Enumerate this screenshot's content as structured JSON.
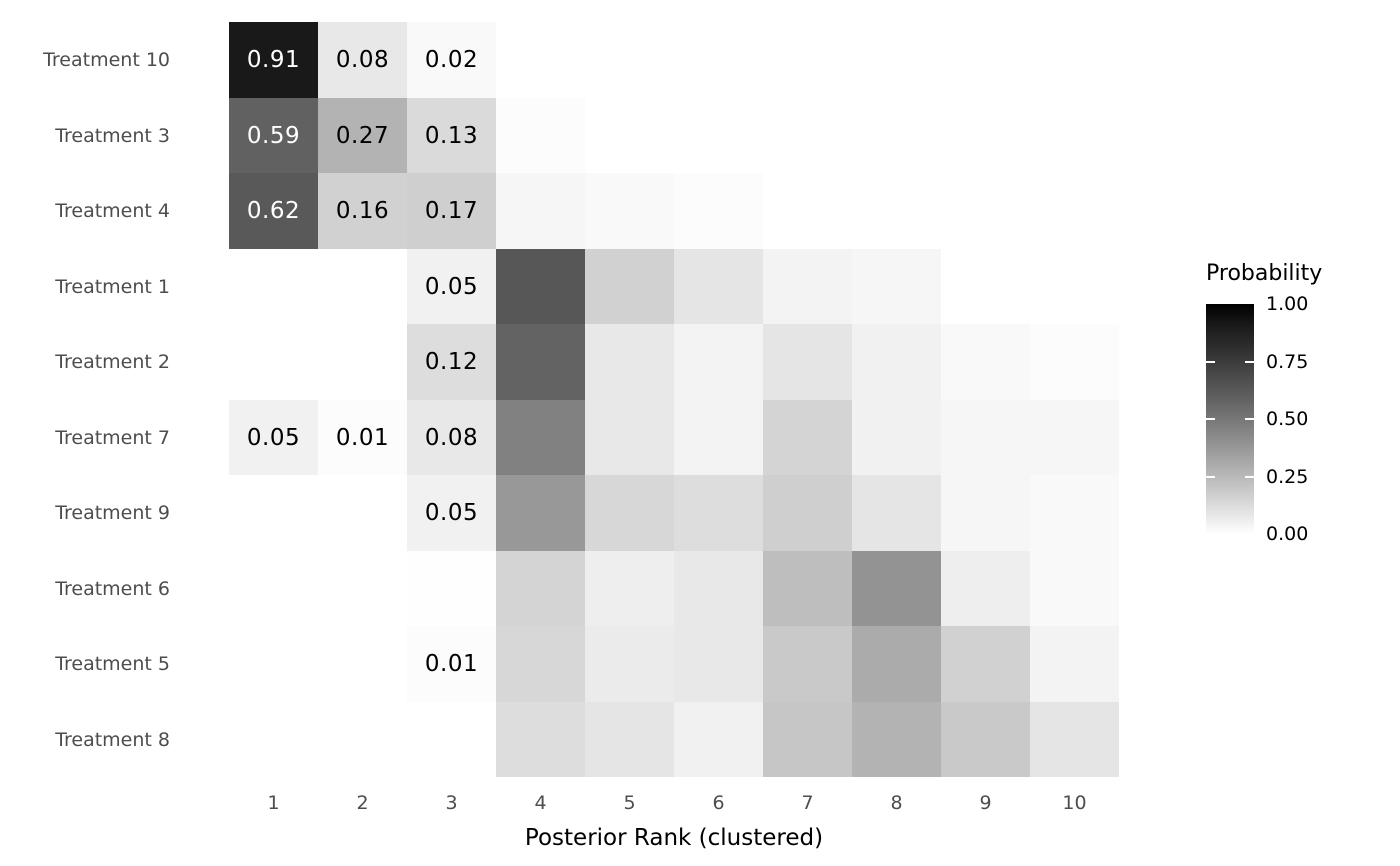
{
  "chart_data": {
    "type": "heatmap",
    "title": "",
    "xlabel": "Posterior Rank (clustered)",
    "ylabel": "",
    "x_ticks": [
      "1",
      "2",
      "3",
      "4",
      "5",
      "6",
      "7",
      "8",
      "9",
      "10"
    ],
    "y_ticks": [
      "Treatment 10",
      "Treatment 3",
      "Treatment 4",
      "Treatment 1",
      "Treatment 2",
      "Treatment 7",
      "Treatment 9",
      "Treatment 6",
      "Treatment 5",
      "Treatment 8"
    ],
    "legend": {
      "title": "Probability",
      "position": "right",
      "tick_labels": [
        "1.00",
        "0.75",
        "0.50",
        "0.25",
        "0.00"
      ],
      "tick_values": [
        1.0,
        0.75,
        0.5,
        0.25,
        0.0
      ],
      "low_color": "#FFFFFF",
      "high_color": "#000000"
    },
    "value_labels": {
      "shown_for_columns": [
        1,
        2,
        3
      ],
      "min_value": 0.01,
      "decimals": 2
    },
    "colors": {
      "background": "#FFFFFF",
      "axis_tick_label": "#4D4D4D",
      "axis_title": "#000000",
      "cell_label_on_light": "#000000",
      "cell_label_on_dark": "#FFFFFF"
    },
    "grid": false,
    "rows": [
      {
        "label": "Treatment 10",
        "values": [
          0.91,
          0.08,
          0.02,
          0,
          0,
          0,
          0,
          0,
          0,
          0
        ]
      },
      {
        "label": "Treatment 3",
        "values": [
          0.59,
          0.27,
          0.13,
          0.01,
          0,
          0,
          0,
          0,
          0,
          0
        ]
      },
      {
        "label": "Treatment 4",
        "values": [
          0.62,
          0.16,
          0.17,
          0.03,
          0.02,
          0.01,
          0,
          0,
          0,
          0
        ]
      },
      {
        "label": "Treatment 1",
        "values": [
          0,
          0,
          0.05,
          0.63,
          0.16,
          0.09,
          0.04,
          0.03,
          0,
          0
        ]
      },
      {
        "label": "Treatment 2",
        "values": [
          0,
          0,
          0.12,
          0.58,
          0.08,
          0.04,
          0.09,
          0.05,
          0.02,
          0.01
        ]
      },
      {
        "label": "Treatment 7",
        "values": [
          0.05,
          0.01,
          0.08,
          0.46,
          0.08,
          0.04,
          0.15,
          0.05,
          0.03,
          0.03
        ]
      },
      {
        "label": "Treatment 9",
        "values": [
          0,
          0,
          0.05,
          0.37,
          0.14,
          0.12,
          0.17,
          0.09,
          0.03,
          0.02
        ]
      },
      {
        "label": "Treatment 6",
        "values": [
          0,
          0,
          0.005,
          0.15,
          0.06,
          0.08,
          0.23,
          0.39,
          0.06,
          0.02
        ]
      },
      {
        "label": "Treatment 5",
        "values": [
          0,
          0,
          0.01,
          0.14,
          0.07,
          0.08,
          0.19,
          0.3,
          0.16,
          0.04
        ]
      },
      {
        "label": "Treatment 8",
        "values": [
          0,
          0,
          0,
          0.12,
          0.09,
          0.05,
          0.2,
          0.27,
          0.19,
          0.09
        ]
      }
    ]
  }
}
